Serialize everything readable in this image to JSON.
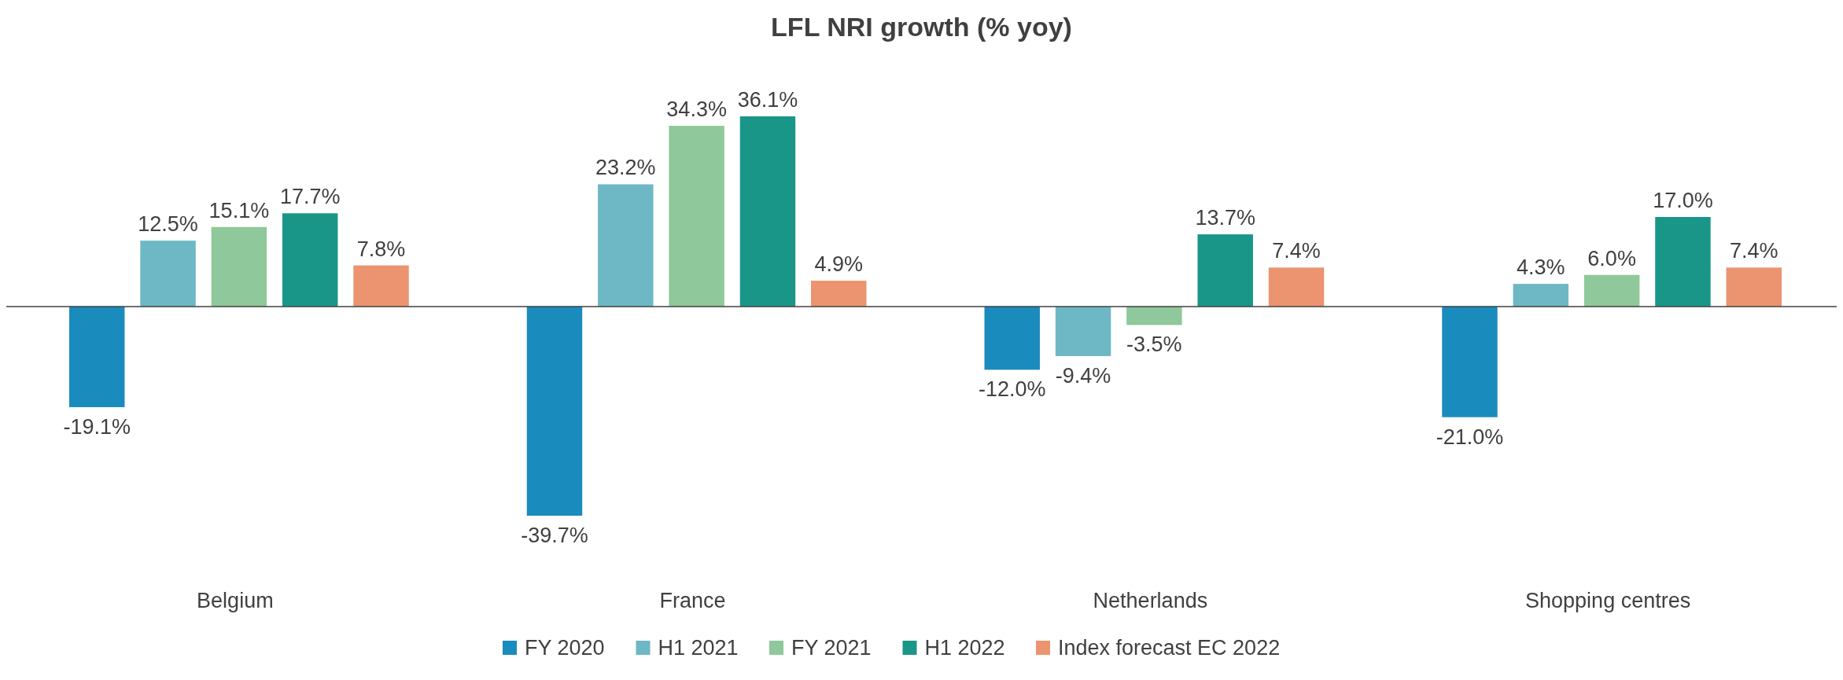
{
  "chart_data": {
    "type": "bar",
    "title": "LFL NRI growth (% yoy)",
    "categories": [
      "Belgium",
      "France",
      "Netherlands",
      "Shopping centres"
    ],
    "series": [
      {
        "name": "FY 2020",
        "color": "#1a8bbd",
        "values": [
          -19.1,
          -39.7,
          -12.0,
          -21.0
        ],
        "value_labels": [
          "-19.1%",
          "-39.7%",
          "-12.0%",
          "-21.0%"
        ]
      },
      {
        "name": "H1 2021",
        "color": "#6db8c4",
        "values": [
          12.5,
          23.2,
          -9.4,
          4.3
        ],
        "value_labels": [
          "12.5%",
          "23.2%",
          "-9.4%",
          "4.3%"
        ]
      },
      {
        "name": "FY 2021",
        "color": "#8fc89a",
        "values": [
          15.1,
          34.3,
          -3.5,
          6.0
        ],
        "value_labels": [
          "15.1%",
          "34.3%",
          "-3.5%",
          "6.0%"
        ]
      },
      {
        "name": "H1 2022",
        "color": "#1a9688",
        "values": [
          17.7,
          36.1,
          13.7,
          17.0
        ],
        "value_labels": [
          "17.7%",
          "36.1%",
          "13.7%",
          "17.0%"
        ]
      },
      {
        "name": "Index forecast EC 2022",
        "color": "#ec9370",
        "values": [
          7.8,
          4.9,
          7.4,
          7.4
        ],
        "value_labels": [
          "7.8%",
          "4.9%",
          "7.4%",
          "7.4%"
        ]
      }
    ],
    "legend": "bottom"
  }
}
